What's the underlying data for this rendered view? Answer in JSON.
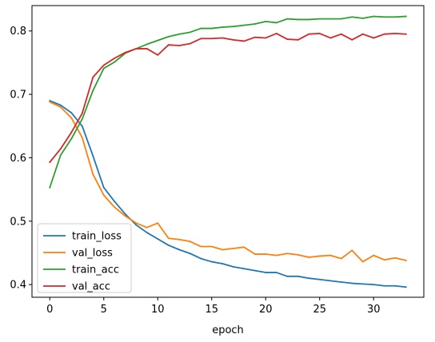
{
  "chart_data": {
    "type": "line",
    "xlabel": "epoch",
    "ylabel": "",
    "xlim": [
      -1.65,
      34.65
    ],
    "ylim": [
      0.38,
      0.84
    ],
    "xticks": [
      0,
      5,
      10,
      15,
      20,
      25,
      30
    ],
    "yticks": [
      0.4,
      0.5,
      0.6,
      0.7,
      0.8
    ],
    "ytick_labels": [
      "0.4",
      "0.5",
      "0.6",
      "0.7",
      "0.8"
    ],
    "grid": false,
    "legend_position": "lower-left",
    "x": [
      0,
      1,
      2,
      3,
      4,
      5,
      6,
      7,
      8,
      9,
      10,
      11,
      12,
      13,
      14,
      15,
      16,
      17,
      18,
      19,
      20,
      21,
      22,
      23,
      24,
      25,
      26,
      27,
      28,
      29,
      30,
      31,
      32,
      33
    ],
    "series": [
      {
        "name": "train_loss",
        "color": "#1f77b4",
        "values": [
          0.69,
          0.683,
          0.671,
          0.65,
          0.603,
          0.553,
          0.531,
          0.511,
          0.494,
          0.482,
          0.472,
          0.462,
          0.455,
          0.449,
          0.441,
          0.436,
          0.433,
          0.428,
          0.425,
          0.422,
          0.419,
          0.419,
          0.413,
          0.413,
          0.41,
          0.408,
          0.406,
          0.404,
          0.402,
          0.401,
          0.4,
          0.398,
          0.398,
          0.396
        ]
      },
      {
        "name": "val_loss",
        "color": "#ff7f0e",
        "values": [
          0.688,
          0.68,
          0.663,
          0.632,
          0.574,
          0.541,
          0.522,
          0.508,
          0.497,
          0.49,
          0.497,
          0.473,
          0.471,
          0.468,
          0.46,
          0.46,
          0.455,
          0.457,
          0.459,
          0.448,
          0.448,
          0.446,
          0.449,
          0.447,
          0.443,
          0.445,
          0.446,
          0.441,
          0.454,
          0.436,
          0.446,
          0.439,
          0.442,
          0.438
        ]
      },
      {
        "name": "train_acc",
        "color": "#2ca02c",
        "values": [
          0.553,
          0.604,
          0.63,
          0.661,
          0.706,
          0.741,
          0.751,
          0.765,
          0.772,
          0.779,
          0.785,
          0.791,
          0.795,
          0.798,
          0.804,
          0.804,
          0.806,
          0.807,
          0.809,
          0.811,
          0.815,
          0.813,
          0.819,
          0.818,
          0.818,
          0.819,
          0.819,
          0.819,
          0.822,
          0.82,
          0.823,
          0.822,
          0.822,
          0.823
        ]
      },
      {
        "name": "val_acc",
        "color": "#d62728",
        "values": [
          0.593,
          0.614,
          0.64,
          0.67,
          0.727,
          0.746,
          0.757,
          0.766,
          0.772,
          0.772,
          0.762,
          0.778,
          0.777,
          0.78,
          0.788,
          0.788,
          0.789,
          0.786,
          0.784,
          0.79,
          0.789,
          0.796,
          0.787,
          0.786,
          0.795,
          0.796,
          0.789,
          0.795,
          0.786,
          0.795,
          0.789,
          0.795,
          0.796,
          0.795
        ]
      }
    ]
  }
}
